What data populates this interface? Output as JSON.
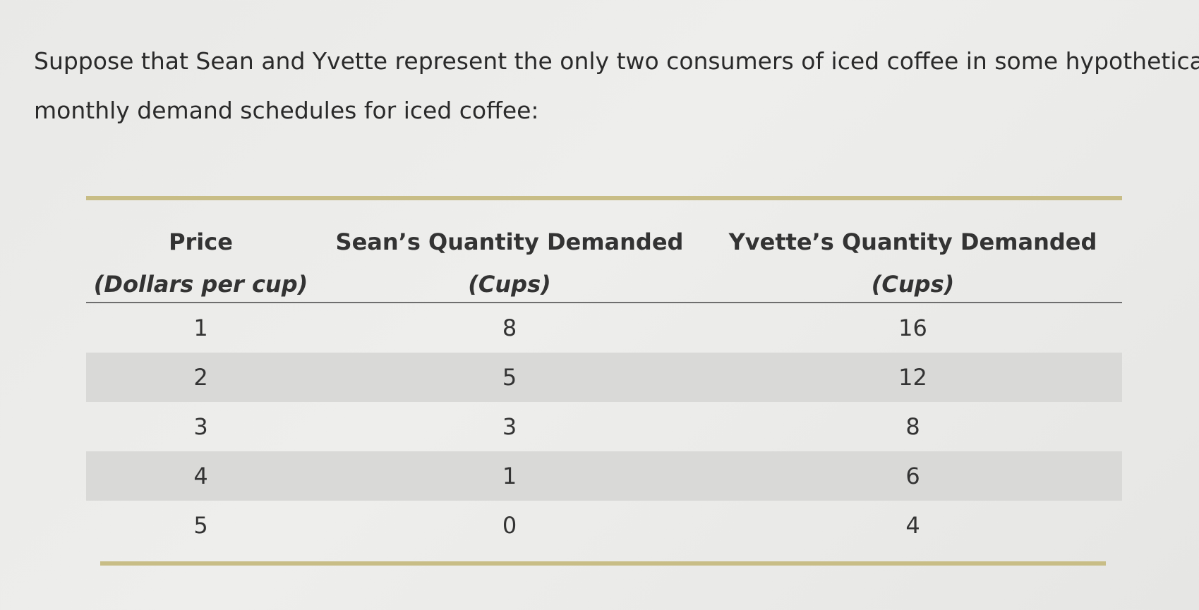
{
  "prompt": {
    "line1": "Suppose that Sean and Yvette represent the only two consumers of iced coffee in some hypothetical",
    "line2": "monthly demand schedules for iced coffee:"
  },
  "table": {
    "headers": {
      "price": "Price",
      "price_unit": "(Dollars per cup)",
      "sean": "Sean’s Quantity Demanded",
      "sean_unit": "(Cups)",
      "yvette": "Yvette’s Quantity Demanded",
      "yvette_unit": "(Cups)"
    },
    "rows": [
      {
        "price": "1",
        "sean": "8",
        "yvette": "16"
      },
      {
        "price": "2",
        "sean": "5",
        "yvette": "12"
      },
      {
        "price": "3",
        "sean": "3",
        "yvette": "8"
      },
      {
        "price": "4",
        "sean": "1",
        "yvette": "6"
      },
      {
        "price": "5",
        "sean": "0",
        "yvette": "4"
      }
    ],
    "colors": {
      "rule": "#c8bd86",
      "shaded_row": "#d9d9d7"
    }
  }
}
